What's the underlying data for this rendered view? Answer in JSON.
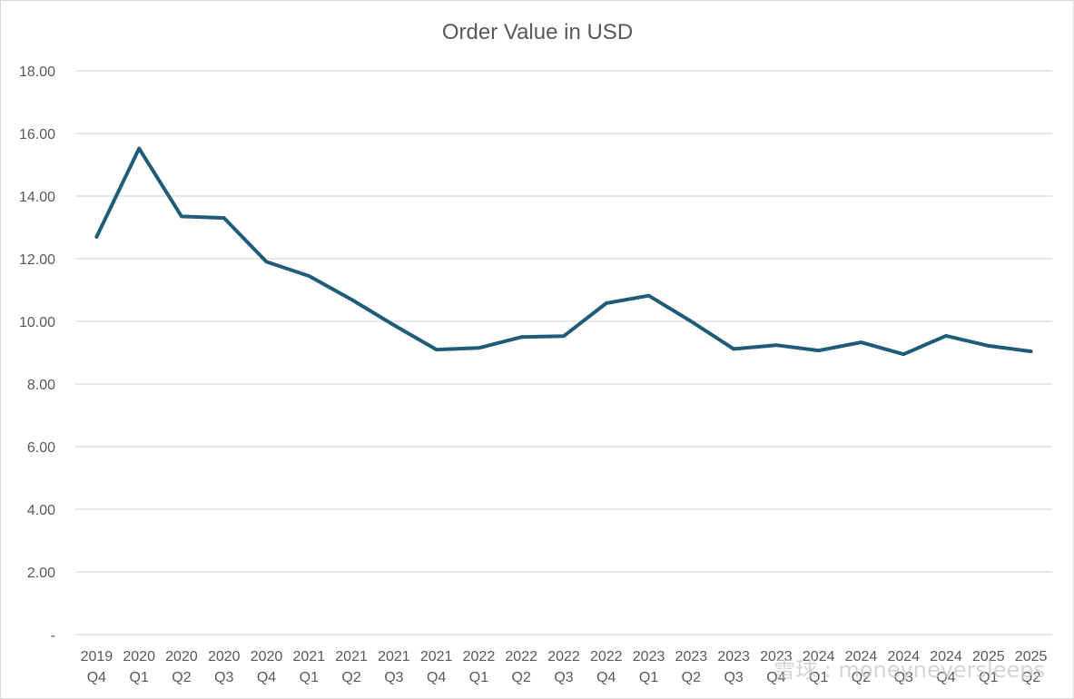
{
  "chart_data": {
    "type": "line",
    "title": "Order Value in USD",
    "xlabel": "",
    "ylabel": "",
    "x": [
      "2019 Q4",
      "2020 Q1",
      "2020 Q2",
      "2020 Q3",
      "2020 Q4",
      "2021 Q1",
      "2021 Q2",
      "2021 Q3",
      "2021 Q4",
      "2022 Q1",
      "2022 Q2",
      "2022 Q3",
      "2022 Q4",
      "2023 Q1",
      "2023 Q2",
      "2023 Q3",
      "2023 Q4",
      "2024 Q1",
      "2024 Q2",
      "2024 Q3",
      "2024 Q4",
      "2025 Q1",
      "2025 Q2"
    ],
    "x_tick_lines": [
      [
        "2019",
        "Q4"
      ],
      [
        "2020",
        "Q1"
      ],
      [
        "2020",
        "Q2"
      ],
      [
        "2020",
        "Q3"
      ],
      [
        "2020",
        "Q4"
      ],
      [
        "2021",
        "Q1"
      ],
      [
        "2021",
        "Q2"
      ],
      [
        "2021",
        "Q3"
      ],
      [
        "2021",
        "Q4"
      ],
      [
        "2022",
        "Q1"
      ],
      [
        "2022",
        "Q2"
      ],
      [
        "2022",
        "Q3"
      ],
      [
        "2022",
        "Q4"
      ],
      [
        "2023",
        "Q1"
      ],
      [
        "2023",
        "Q2"
      ],
      [
        "2023",
        "Q3"
      ],
      [
        "2023",
        "Q4"
      ],
      [
        "2024",
        "Q1"
      ],
      [
        "2024",
        "Q2"
      ],
      [
        "2024",
        "Q3"
      ],
      [
        "2024",
        "Q4"
      ],
      [
        "2025",
        "Q1"
      ],
      [
        "2025",
        "Q2"
      ]
    ],
    "series": [
      {
        "values": [
          12.7,
          15.52,
          13.35,
          13.3,
          11.9,
          11.45,
          10.7,
          9.88,
          9.1,
          9.15,
          9.5,
          9.53,
          10.58,
          10.82,
          10.0,
          9.12,
          9.24,
          9.07,
          9.33,
          8.95,
          9.54,
          9.22,
          9.04
        ],
        "color": "#1f5c7a"
      }
    ],
    "ylim": [
      0,
      18
    ],
    "y_ticks": [
      0,
      2,
      4,
      6,
      8,
      10,
      12,
      14,
      16,
      18
    ],
    "y_tick_labels": [
      "-",
      "2.00",
      "4.00",
      "6.00",
      "8.00",
      "10.00",
      "12.00",
      "14.00",
      "16.00",
      "18.00"
    ],
    "grid": "horizontal",
    "legend": "none"
  },
  "watermark": {
    "text": "雪球 : moneyneversleeps"
  }
}
